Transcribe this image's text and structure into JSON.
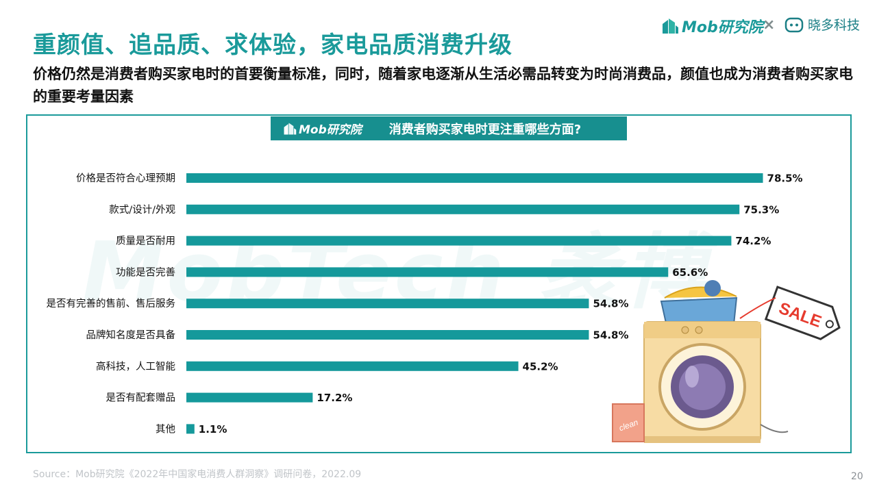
{
  "header": {
    "title": "重颜值、追品质、求体验，家电品质消费升级",
    "subtitle": "价格仍然是消费者购买家电时的首要衡量标准，同时，随着家电逐渐从生活必需品转变为时尚消费品，颜值也成为消费者购买家电的重要考量因素"
  },
  "brands": {
    "mob_label": "Mob研究院",
    "separator": "×",
    "partner_label": "晓多科技"
  },
  "panel": {
    "header_logo": "Mob研究院",
    "header_title": "消费者购买家电时更注重哪些方面?",
    "watermark": "MobTech 袤博"
  },
  "illustration": {
    "sale_tag": "SALE",
    "box_text": "clean"
  },
  "colors": {
    "accent": "#1a9a9a",
    "bar": "#15999b"
  },
  "chart_data": {
    "type": "bar",
    "orientation": "horizontal",
    "categories": [
      "价格是否符合心理预期",
      "款式/设计/外观",
      "质量是否耐用",
      "功能是否完善",
      "是否有完善的售前、售后服务",
      "品牌知名度是否具备",
      "高科技，人工智能",
      "是否有配套赠品",
      "其他"
    ],
    "values": [
      78.5,
      75.3,
      74.2,
      65.6,
      54.8,
      54.8,
      45.2,
      17.2,
      1.1
    ],
    "value_labels": [
      "78.5%",
      "75.3%",
      "74.2%",
      "65.6%",
      "54.8%",
      "54.8%",
      "45.2%",
      "17.2%",
      "1.1%"
    ],
    "xlim": [
      0,
      100
    ],
    "title": "消费者购买家电时更注重哪些方面?"
  },
  "footer": {
    "source": "Source：Mob研究院《2022年中国家电消费人群洞察》调研问卷，2022.09",
    "page_number": "20"
  }
}
